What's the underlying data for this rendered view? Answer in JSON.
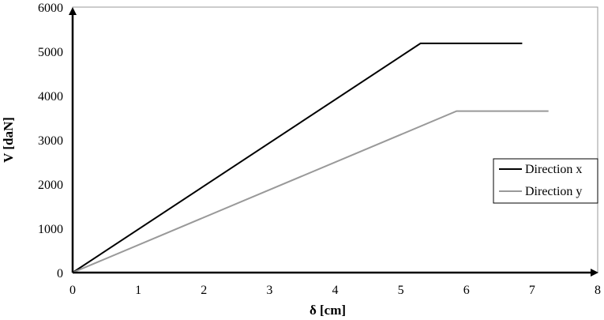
{
  "chart_data": {
    "type": "line",
    "xlabel": "δ [cm]",
    "ylabel": "V [daN]",
    "xlim": [
      0,
      8
    ],
    "ylim": [
      0,
      6000
    ],
    "x_ticks": [
      "0",
      "1",
      "2",
      "3",
      "4",
      "5",
      "6",
      "7",
      "8"
    ],
    "y_ticks": [
      "0",
      "1000",
      "2000",
      "3000",
      "4000",
      "5000",
      "6000"
    ],
    "grid": false,
    "legend_position": "right",
    "series": [
      {
        "name": "Direction x",
        "color": "#000000",
        "points": [
          [
            0,
            0
          ],
          [
            5.3,
            5180
          ],
          [
            6.85,
            5180
          ]
        ]
      },
      {
        "name": "Direction y",
        "color": "#999999",
        "points": [
          [
            0,
            0
          ],
          [
            5.85,
            3650
          ],
          [
            7.25,
            3650
          ]
        ]
      }
    ]
  }
}
